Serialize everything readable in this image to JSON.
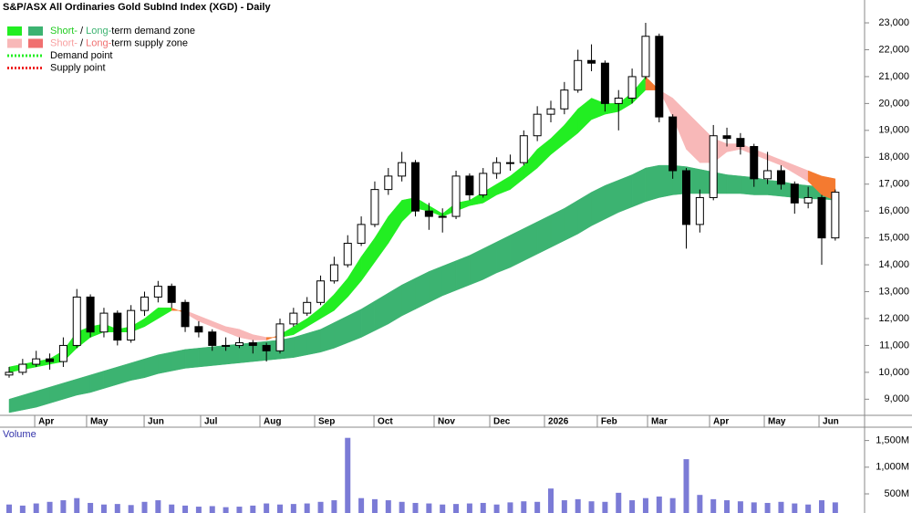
{
  "chart_data": [
    {
      "type": "candlestick",
      "title": "S&P/ASX All Ordinaries Gold SubInd Index (XGD) - Daily",
      "legend": [
        {
          "swatches": [
            "#22ee22",
            "#3cb371"
          ],
          "parts": [
            {
              "text": "Short-",
              "color": "#22cc22"
            },
            {
              "text": " / ",
              "color": "#000000"
            },
            {
              "text": "Long-",
              "color": "#3cb371"
            },
            {
              "text": "term demand zone",
              "color": "#000000"
            }
          ]
        },
        {
          "swatches": [
            "#f8b8b8",
            "#f07070"
          ],
          "parts": [
            {
              "text": "Short-",
              "color": "#f8a0a0"
            },
            {
              "text": " / ",
              "color": "#000000"
            },
            {
              "text": "Long-",
              "color": "#f07070"
            },
            {
              "text": "term supply zone",
              "color": "#000000"
            }
          ]
        },
        {
          "line": "#22ee22",
          "parts": [
            {
              "text": "Demand point",
              "color": "#000000"
            }
          ]
        },
        {
          "line": "#ee2222",
          "parts": [
            {
              "text": "Supply point",
              "color": "#000000"
            }
          ]
        }
      ],
      "colors": {
        "short_demand": "#22ee22",
        "short_supply": "#f8b8b8",
        "long_demand": "#3cb371",
        "overlap": "#f47a30",
        "up": "#ffffff",
        "down": "#000000"
      },
      "open": [
        9900,
        10000,
        10300,
        10500,
        10400,
        11000,
        12800,
        11500,
        12200,
        11200,
        12300,
        12800,
        13200,
        12600,
        11700,
        11500,
        11000,
        11000,
        11100,
        11000,
        10800,
        11800,
        12200,
        12600,
        13400,
        14000,
        14800,
        15500,
        16800,
        17300,
        17800,
        16000,
        15800,
        15800,
        17300,
        16600,
        17400,
        17800,
        17800,
        18800,
        19600,
        19800,
        20500,
        21600,
        21500,
        20000,
        20200,
        21000,
        22500,
        19500,
        17500,
        15500,
        16500,
        18800,
        18700,
        18400,
        17200,
        17500,
        17000,
        16300,
        16500,
        15000
      ],
      "high": [
        10200,
        10500,
        10800,
        10700,
        11300,
        13100,
        12900,
        12400,
        12300,
        12500,
        13000,
        13400,
        13300,
        12700,
        11900,
        11600,
        11300,
        11300,
        11200,
        11100,
        12000,
        12400,
        12800,
        13600,
        14300,
        15100,
        15800,
        17100,
        17600,
        18200,
        17900,
        16300,
        16100,
        17500,
        17400,
        17600,
        18000,
        18100,
        19000,
        19900,
        20100,
        20800,
        22000,
        22200,
        21600,
        20500,
        21300,
        23000,
        22600,
        19600,
        17600,
        16800,
        19200,
        19100,
        18900,
        18500,
        18200,
        17700,
        17100,
        16900,
        16600,
        16800
      ],
      "low": [
        9800,
        9900,
        10200,
        10100,
        10200,
        10900,
        11300,
        11300,
        11000,
        11100,
        12100,
        12600,
        12400,
        11500,
        11300,
        10800,
        10800,
        10900,
        10700,
        10400,
        10700,
        11700,
        12100,
        12500,
        13300,
        13900,
        14700,
        15400,
        16600,
        17100,
        15800,
        15300,
        15200,
        15700,
        16400,
        16500,
        17200,
        17500,
        17700,
        18600,
        19300,
        19600,
        20400,
        21200,
        19700,
        19000,
        20000,
        20900,
        19300,
        17200,
        14600,
        15200,
        16400,
        18400,
        18100,
        16900,
        17000,
        16800,
        15900,
        16100,
        14000,
        14900
      ],
      "close": [
        10000,
        10300,
        10500,
        10400,
        11000,
        12800,
        11500,
        12200,
        11200,
        12300,
        12800,
        13200,
        12600,
        11700,
        11500,
        11000,
        11000,
        11100,
        11000,
        10800,
        11800,
        12200,
        12600,
        13400,
        14000,
        14800,
        15500,
        16800,
        17300,
        17800,
        16000,
        15800,
        15800,
        17300,
        16600,
        17400,
        17800,
        17800,
        18800,
        19600,
        19800,
        20500,
        21600,
        21500,
        20000,
        20200,
        21000,
        22500,
        19500,
        17500,
        15500,
        16500,
        18800,
        18700,
        18400,
        17200,
        17500,
        17000,
        16300,
        16500,
        15000,
        16700
      ],
      "short_zone": {
        "fast": [
          10200,
          10300,
          10400,
          10500,
          10800,
          11500,
          11700,
          11800,
          11600,
          11700,
          12000,
          12400,
          12400,
          12200,
          11900,
          11700,
          11500,
          11300,
          11200,
          11200,
          11400,
          11700,
          12000,
          12400,
          12900,
          13500,
          14300,
          15000,
          15800,
          16400,
          16500,
          16200,
          15900,
          16300,
          16400,
          16700,
          17000,
          17300,
          17700,
          18300,
          18700,
          19200,
          19800,
          20200,
          20000,
          20000,
          20400,
          21000,
          20500,
          19500,
          18300,
          17800,
          17800,
          18200,
          18300,
          18100,
          17900,
          17700,
          17400,
          17100,
          16600,
          16400
        ],
        "slow": [
          10000,
          10100,
          10200,
          10300,
          10400,
          10900,
          11300,
          11500,
          11500,
          11500,
          11700,
          12000,
          12300,
          12300,
          12100,
          11900,
          11700,
          11600,
          11400,
          11300,
          11300,
          11400,
          11700,
          12000,
          12300,
          12800,
          13400,
          14100,
          14800,
          15600,
          16100,
          16000,
          15800,
          16000,
          16200,
          16300,
          16600,
          16800,
          17200,
          17600,
          18100,
          18500,
          18900,
          19400,
          19600,
          19700,
          20000,
          20500,
          20500,
          20200,
          19700,
          19200,
          18700,
          18500,
          18500,
          18300,
          18100,
          17900,
          17700,
          17500,
          17300,
          17200
        ]
      },
      "long_zone": {
        "upper": [
          9000,
          9150,
          9300,
          9450,
          9600,
          9750,
          9900,
          10050,
          10200,
          10350,
          10500,
          10650,
          10750,
          10850,
          10900,
          10950,
          11000,
          11050,
          11100,
          11150,
          11200,
          11300,
          11450,
          11600,
          11850,
          12100,
          12350,
          12650,
          12950,
          13250,
          13500,
          13750,
          13950,
          14150,
          14350,
          14600,
          14850,
          15100,
          15350,
          15600,
          15850,
          16100,
          16400,
          16700,
          16950,
          17150,
          17350,
          17600,
          17700,
          17700,
          17650,
          17550,
          17450,
          17350,
          17300,
          17250,
          17150,
          17100,
          17000,
          16950,
          16900,
          16850
        ],
        "lower": [
          8500,
          8600,
          8700,
          8850,
          9000,
          9150,
          9250,
          9400,
          9550,
          9700,
          9800,
          9950,
          10050,
          10150,
          10200,
          10250,
          10300,
          10350,
          10400,
          10450,
          10500,
          10550,
          10650,
          10750,
          10900,
          11100,
          11300,
          11550,
          11800,
          12100,
          12350,
          12600,
          12850,
          13050,
          13250,
          13450,
          13700,
          13900,
          14150,
          14400,
          14650,
          14900,
          15150,
          15450,
          15700,
          15950,
          16150,
          16350,
          16500,
          16600,
          16650,
          16650,
          16650,
          16650,
          16650,
          16600,
          16600,
          16550,
          16500,
          16450,
          16450,
          16400
        ]
      },
      "ylim": [
        8400,
        23850
      ],
      "yticks": [
        {
          "value": 9000,
          "label": "9,000"
        },
        {
          "value": 10000,
          "label": "10,000"
        },
        {
          "value": 11000,
          "label": "11,000"
        },
        {
          "value": 12000,
          "label": "12,000"
        },
        {
          "value": 13000,
          "label": "13,000"
        },
        {
          "value": 14000,
          "label": "14,000"
        },
        {
          "value": 15000,
          "label": "15,000"
        },
        {
          "value": 16000,
          "label": "16,000"
        },
        {
          "value": 17000,
          "label": "17,000"
        },
        {
          "value": 18000,
          "label": "18,000"
        },
        {
          "value": 19000,
          "label": "19,000"
        },
        {
          "value": 20000,
          "label": "20,000"
        },
        {
          "value": 21000,
          "label": "21,000"
        },
        {
          "value": 22000,
          "label": "22,000"
        },
        {
          "value": 23000,
          "label": "23,000"
        }
      ],
      "xticks": [
        {
          "value": 1.89,
          "label": "Apr"
        },
        {
          "value": 5.72,
          "label": "May"
        },
        {
          "value": 9.97,
          "label": "Jun"
        },
        {
          "value": 14.14,
          "label": "Jul"
        },
        {
          "value": 18.52,
          "label": "Aug"
        },
        {
          "value": 22.56,
          "label": "Sep"
        },
        {
          "value": 26.94,
          "label": "Oct"
        },
        {
          "value": 31.38,
          "label": "Nov"
        },
        {
          "value": 35.49,
          "label": "Dec"
        },
        {
          "value": 39.53,
          "label": "2026"
        },
        {
          "value": 43.43,
          "label": "Feb"
        },
        {
          "value": 47.14,
          "label": "Mar"
        },
        {
          "value": 51.72,
          "label": "Apr"
        },
        {
          "value": 55.76,
          "label": "May"
        },
        {
          "value": 59.8,
          "label": "Jun"
        }
      ],
      "grid": false
    },
    {
      "type": "bar",
      "title": "Volume",
      "color": "#7b7bd6",
      "values": [
        300,
        280,
        320,
        350,
        380,
        420,
        330,
        300,
        310,
        290,
        350,
        380,
        300,
        280,
        260,
        270,
        250,
        260,
        280,
        320,
        300,
        310,
        320,
        350,
        380,
        1550,
        420,
        400,
        380,
        350,
        330,
        320,
        300,
        310,
        320,
        330,
        300,
        340,
        360,
        350,
        600,
        380,
        400,
        360,
        350,
        520,
        380,
        420,
        450,
        420,
        1150,
        480,
        400,
        380,
        360,
        340,
        330,
        350,
        320,
        300,
        380,
        340
      ],
      "ylim": [
        141,
        1750
      ],
      "yticks": [
        {
          "value": 500,
          "label": "500M"
        },
        {
          "value": 1000,
          "label": "1,000M"
        },
        {
          "value": 1500,
          "label": "1,500M"
        }
      ],
      "grid": false
    }
  ]
}
